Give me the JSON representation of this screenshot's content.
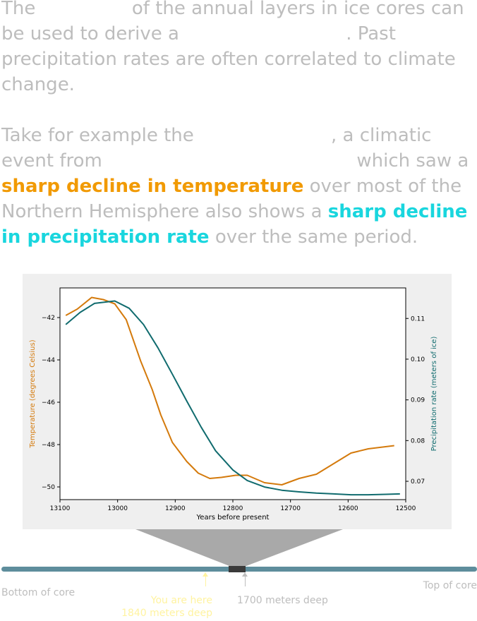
{
  "intro": {
    "p1_seg1": "The",
    "p1_seg2": "of the annual layers in ice cores can be used to derive a",
    "p1_seg3": ". Past precipitation rates are often correlated to climate change.",
    "p2_seg1": "Take for example the",
    "p2_seg2": ", a climatic event from",
    "p2_seg3": "which saw a",
    "p2_highlight_temp": "sharp decline in temperature",
    "p2_seg4": "over most of the Northern Hemisphere also shows a",
    "p2_highlight_precip": "sharp decline in precipitation rate",
    "p2_seg5": "over the same period."
  },
  "colors": {
    "temperature": "#d47a0c",
    "precipitation": "#106b6e",
    "highlight_temperature": "#f19a03",
    "highlight_precipitation": "#19d6de",
    "core": "#5e8d9c",
    "you_are_here": "#fff3a0"
  },
  "chart_data": {
    "type": "line",
    "xlabel": "Years before present",
    "ylabel_left": "Temperature (degrees Celsius)",
    "ylabel_right": "Precipitation rate (meters of ice)",
    "xlim": [
      13100,
      12500
    ],
    "x_ticks": [
      13100,
      13000,
      12900,
      12800,
      12700,
      12600,
      12500
    ],
    "ylim_left": [
      -50.6,
      -40.6
    ],
    "yticks_left": [
      -42,
      -44,
      -46,
      -48,
      -50
    ],
    "ylim_right": [
      0.0655,
      0.1175
    ],
    "yticks_right": [
      0.11,
      0.1,
      0.09,
      0.08,
      0.07
    ],
    "legend": "none",
    "grid": false,
    "series": [
      {
        "axis": "left",
        "x": [
          13090,
          13070,
          13045,
          13025,
          13005,
          12985,
          12960,
          12940,
          12925,
          12905,
          12880,
          12860,
          12840,
          12820,
          12795,
          12775,
          12745,
          12715,
          12685,
          12655,
          12625,
          12595,
          12565,
          12520
        ],
        "y": [
          -41.9,
          -41.6,
          -41.05,
          -41.15,
          -41.35,
          -42.1,
          -44.05,
          -45.4,
          -46.6,
          -47.9,
          -48.8,
          -49.35,
          -49.6,
          -49.55,
          -49.45,
          -49.45,
          -49.8,
          -49.9,
          -49.6,
          -49.4,
          -48.9,
          -48.4,
          -48.2,
          -48.05
        ]
      },
      {
        "axis": "right",
        "x": [
          13090,
          13065,
          13040,
          13005,
          12980,
          12955,
          12930,
          12905,
          12880,
          12855,
          12830,
          12800,
          12775,
          12745,
          12715,
          12685,
          12655,
          12625,
          12595,
          12565,
          12535,
          12510
        ],
        "y": [
          0.1085,
          0.1115,
          0.1137,
          0.1143,
          0.1125,
          0.1085,
          0.1028,
          0.0963,
          0.0897,
          0.0833,
          0.0775,
          0.0728,
          0.0702,
          0.0686,
          0.0678,
          0.0674,
          0.0671,
          0.0669,
          0.0667,
          0.0667,
          0.0668,
          0.0669
        ]
      }
    ]
  },
  "core": {
    "bottom_label": "Bottom of core",
    "top_label": "Top of core",
    "you_are_here": "You are here",
    "you_are_here_depth": "1840 meters deep",
    "window_depth": "1700 meters deep"
  }
}
